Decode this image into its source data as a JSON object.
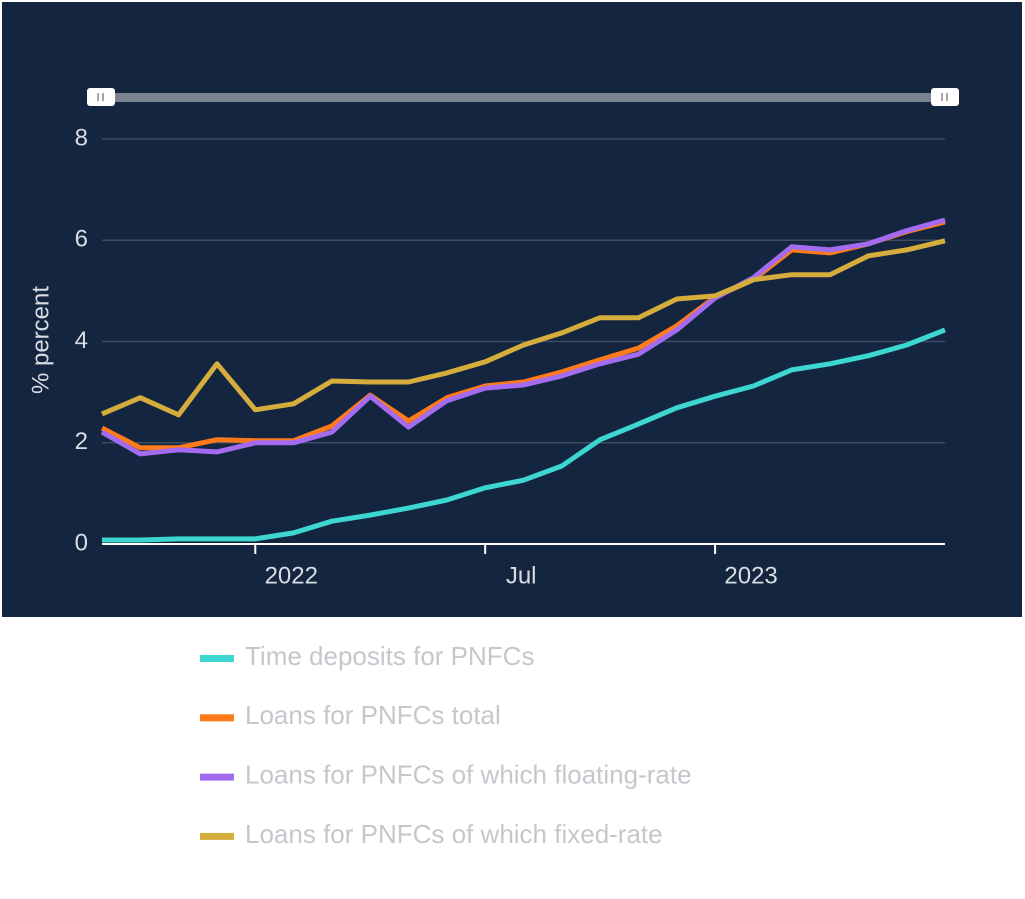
{
  "chart_data": {
    "type": "line",
    "y_label": "% percent",
    "x": [
      "2021-09",
      "2021-10",
      "2021-11",
      "2021-12",
      "2022-01",
      "2022-02",
      "2022-03",
      "2022-04",
      "2022-05",
      "2022-06",
      "2022-07",
      "2022-08",
      "2022-09",
      "2022-10",
      "2022-11",
      "2022-12",
      "2023-01",
      "2023-02",
      "2023-03",
      "2023-04",
      "2023-05",
      "2023-06",
      "2023-07"
    ],
    "xlim": [
      "2021-09",
      "2023-07"
    ],
    "xticks": [
      {
        "value": "2022-01",
        "label": "2022"
      },
      {
        "value": "2022-07",
        "label": "Jul"
      },
      {
        "value": "2023-01",
        "label": "2023"
      }
    ],
    "ylim": [
      0,
      8
    ],
    "yticks": [
      0,
      2,
      4,
      6,
      8
    ],
    "grid": true,
    "legend": "bottom",
    "series": [
      {
        "name": "Time deposits for PNFCs",
        "color": "#3dd6d0",
        "values": [
          0.08,
          0.08,
          0.1,
          0.1,
          0.1,
          0.22,
          0.45,
          0.57,
          0.71,
          0.87,
          1.11,
          1.26,
          1.54,
          2.06,
          2.37,
          2.69,
          2.92,
          3.12,
          3.44,
          3.56,
          3.72,
          3.93,
          4.23
        ]
      },
      {
        "name": "Loans for PNFCs total",
        "color": "#ff7a1a",
        "values": [
          2.29,
          1.9,
          1.9,
          2.06,
          2.04,
          2.04,
          2.33,
          2.94,
          2.43,
          2.89,
          3.12,
          3.2,
          3.4,
          3.64,
          3.87,
          4.31,
          4.88,
          5.22,
          5.81,
          5.75,
          5.93,
          6.17,
          6.36
        ]
      },
      {
        "name": "Loans for PNFCs of which floating-rate",
        "color": "#a36cf0",
        "values": [
          2.21,
          1.78,
          1.86,
          1.82,
          2.0,
          2.0,
          2.21,
          2.92,
          2.31,
          2.83,
          3.08,
          3.14,
          3.32,
          3.56,
          3.75,
          4.23,
          4.86,
          5.26,
          5.87,
          5.81,
          5.93,
          6.19,
          6.4
        ]
      },
      {
        "name": "Loans for PNFCs of which fixed-rate",
        "color": "#d4ad3c",
        "values": [
          2.57,
          2.89,
          2.55,
          3.56,
          2.65,
          2.77,
          3.22,
          3.2,
          3.2,
          3.38,
          3.6,
          3.93,
          4.17,
          4.47,
          4.47,
          4.84,
          4.9,
          5.22,
          5.32,
          5.32,
          5.69,
          5.81,
          5.99
        ]
      }
    ]
  }
}
